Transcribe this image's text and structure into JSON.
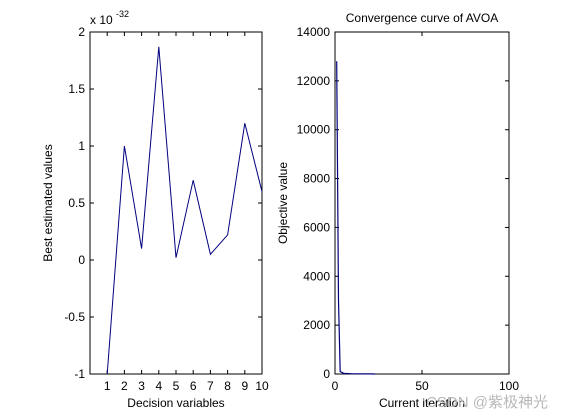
{
  "chart_data": [
    {
      "type": "line",
      "title": "",
      "xlabel": "Decision variables",
      "ylabel": "Best estimated values",
      "y_exponent_label": "x 10",
      "y_exponent_power": "-32",
      "xlim": [
        0,
        10
      ],
      "ylim": [
        -1,
        2
      ],
      "x_ticks": [
        1,
        2,
        3,
        4,
        5,
        6,
        7,
        8,
        9,
        10
      ],
      "x_tick_labels": [
        "1",
        "2",
        "3",
        "4",
        "5",
        "6",
        "7",
        "8",
        "9",
        "10"
      ],
      "y_ticks": [
        -1,
        -0.5,
        0,
        0.5,
        1,
        1.5,
        2
      ],
      "y_tick_labels": [
        "-1",
        "-0.5",
        "0",
        "0.5",
        "1",
        "1.5",
        "2"
      ],
      "grid": false,
      "line_color": "#00007f",
      "series": [
        {
          "x": [
            1,
            2,
            3,
            4,
            5,
            6,
            7,
            8,
            9,
            10
          ],
          "values": [
            -1.0,
            1.0,
            0.1,
            1.87,
            0.02,
            0.7,
            0.05,
            0.22,
            1.2,
            0.6
          ]
        }
      ]
    },
    {
      "type": "line",
      "title": "Convergence curve of AVOA",
      "xlabel": "Current iteration",
      "ylabel": "Objective value",
      "xlim": [
        0,
        100
      ],
      "ylim": [
        0,
        14000
      ],
      "x_ticks": [
        0,
        50,
        100
      ],
      "x_tick_labels": [
        "0",
        "50",
        "100"
      ],
      "y_ticks": [
        0,
        2000,
        4000,
        6000,
        8000,
        10000,
        12000,
        14000
      ],
      "y_tick_labels": [
        "0",
        "2000",
        "4000",
        "6000",
        "8000",
        "10000",
        "12000",
        "14000"
      ],
      "grid": false,
      "line_color": "#00007f",
      "series": [
        {
          "x": [
            1,
            2,
            3,
            5,
            10,
            20,
            23
          ],
          "values": [
            12800,
            3000,
            100,
            30,
            10,
            5,
            0
          ]
        }
      ]
    }
  ],
  "watermark": "CSDN @紫极神光"
}
